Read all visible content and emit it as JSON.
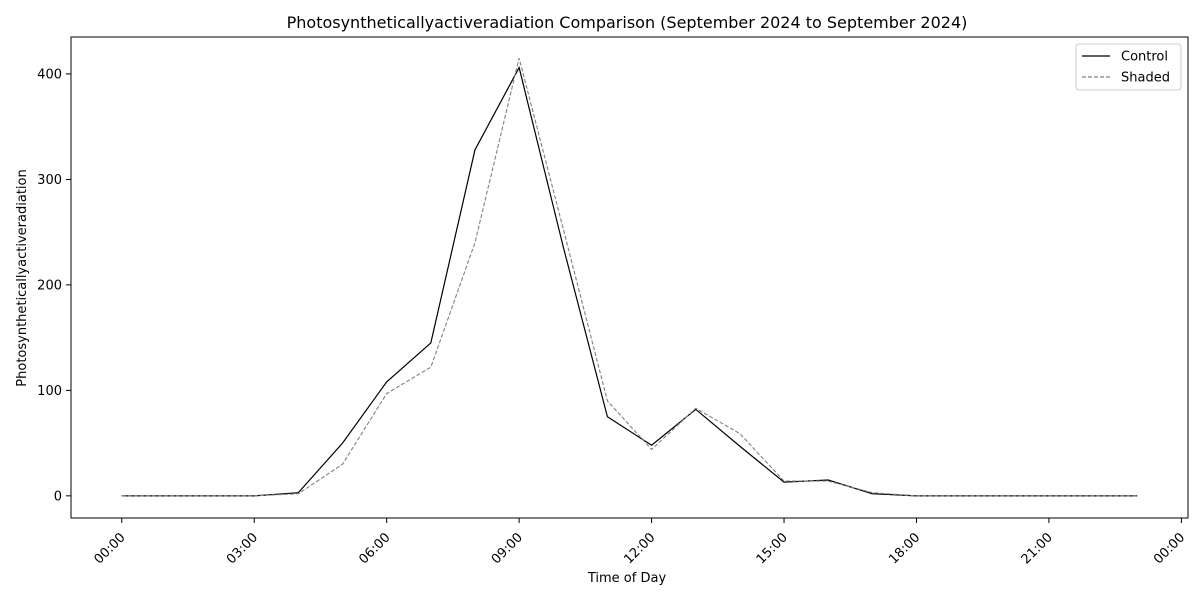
{
  "chart_data": {
    "type": "line",
    "title": "Photosyntheticallyactiveradiation Comparison (September 2024 to September 2024)",
    "xlabel": "Time of Day",
    "ylabel": "Photosyntheticallyactiveradiation",
    "x": [
      "00:00",
      "01:00",
      "02:00",
      "03:00",
      "04:00",
      "05:00",
      "06:00",
      "07:00",
      "08:00",
      "09:00",
      "10:00",
      "11:00",
      "12:00",
      "13:00",
      "14:00",
      "15:00",
      "16:00",
      "17:00",
      "18:00",
      "19:00",
      "20:00",
      "21:00",
      "22:00",
      "23:00"
    ],
    "x_ticks": [
      "00:00",
      "03:00",
      "06:00",
      "09:00",
      "12:00",
      "15:00",
      "18:00",
      "21:00",
      "00:00"
    ],
    "x_tick_hours": [
      0,
      3,
      6,
      9,
      12,
      15,
      18,
      21,
      24
    ],
    "xlim_hours": [
      -1.15,
      24.15
    ],
    "y_ticks": [
      0,
      100,
      200,
      300,
      400
    ],
    "ylim": [
      -21,
      435
    ],
    "legend": "top-right",
    "grid": false,
    "series": [
      {
        "name": "Control",
        "color": "#000000",
        "dash": "solid",
        "values": [
          0,
          0,
          0,
          0,
          3,
          50,
          108,
          145,
          328,
          406,
          236,
          75,
          48,
          82,
          47,
          13,
          15,
          2,
          0,
          0,
          0,
          0,
          0,
          0
        ]
      },
      {
        "name": "Shaded",
        "color": "#808080",
        "dash": "dashed",
        "values": [
          0,
          0,
          0,
          0,
          2,
          30,
          97,
          122,
          240,
          415,
          253,
          90,
          44,
          83,
          59,
          14,
          14,
          3,
          0,
          0,
          0,
          0,
          0,
          0
        ]
      }
    ]
  }
}
